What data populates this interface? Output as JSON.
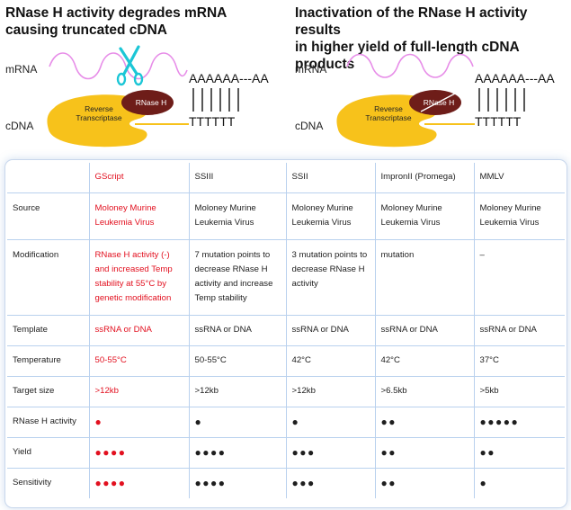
{
  "panels": {
    "left": {
      "title": "RNase H activity degrades mRNA\ncausing truncated cDNA",
      "mrna_label": "mRNA",
      "cdna_label": "cDNA",
      "rt_label_1": "Reverse",
      "rt_label_2": "Transcriptase",
      "rnase_label": "RNase H",
      "poly_a": "AAAAAA---AA",
      "poly_t": "TTTTTT",
      "scissors_color": "#1cc6d6"
    },
    "right": {
      "title": "Inactivation of the RNase H activity results\nin higher yield of full-length cDNA products",
      "mrna_label": "mRNA",
      "cdna_label": "cDNA",
      "rt_label_1": "Reverse",
      "rt_label_2": "Transcriptase",
      "rnase_label": "RNase H",
      "poly_a": "AAAAAA---AA",
      "poly_t": "TTTTTT"
    }
  },
  "colors": {
    "mrna_wave": "#e78de8",
    "enzyme": "#f7c21b",
    "rnase": "#6e1d19",
    "highlight": "#e2101f",
    "grid": "#b9d1ee"
  },
  "table": {
    "columns": [
      "",
      "GScript",
      "SSIII",
      "SSII",
      "ImpronII (Promega)",
      "MMLV"
    ],
    "rows": [
      {
        "label": "Source",
        "cells": [
          "Moloney Murine Leukemia Virus",
          "Moloney Murine Leukemia Virus",
          "Moloney Murine Leukemia Virus",
          "Moloney Murine Leukemia Virus",
          "Moloney Murine Leukemia Virus"
        ]
      },
      {
        "label": "Modification",
        "cells": [
          "RNase H activity (-) and increased Temp stability at 55°C by genetic modification",
          "7 mutation points to decrease RNase H activity and increase Temp stability",
          "3 mutation points to decrease RNase H activity",
          "mutation",
          "–"
        ]
      },
      {
        "label": "Template",
        "cells": [
          "ssRNA or DNA",
          "ssRNA or DNA",
          "ssRNA or DNA",
          "ssRNA or DNA",
          "ssRNA or DNA"
        ]
      },
      {
        "label": "Temperature",
        "cells": [
          "50-55°C",
          "50-55°C",
          "42°C",
          "42°C",
          "37°C"
        ]
      },
      {
        "label": "Target size",
        "cells": [
          ">12kb",
          ">12kb",
          ">12kb",
          ">6.5kb",
          ">5kb"
        ]
      },
      {
        "label": "RNase H activity",
        "cells": [
          "●",
          "●",
          "●",
          "●●",
          "●●●●●"
        ]
      },
      {
        "label": "Yield",
        "cells": [
          "●●●●",
          "●●●●",
          "●●●",
          "●●",
          "●●"
        ]
      },
      {
        "label": "Sensitivity",
        "cells": [
          "●●●●",
          "●●●●",
          "●●●",
          "●●",
          "●"
        ]
      }
    ]
  }
}
